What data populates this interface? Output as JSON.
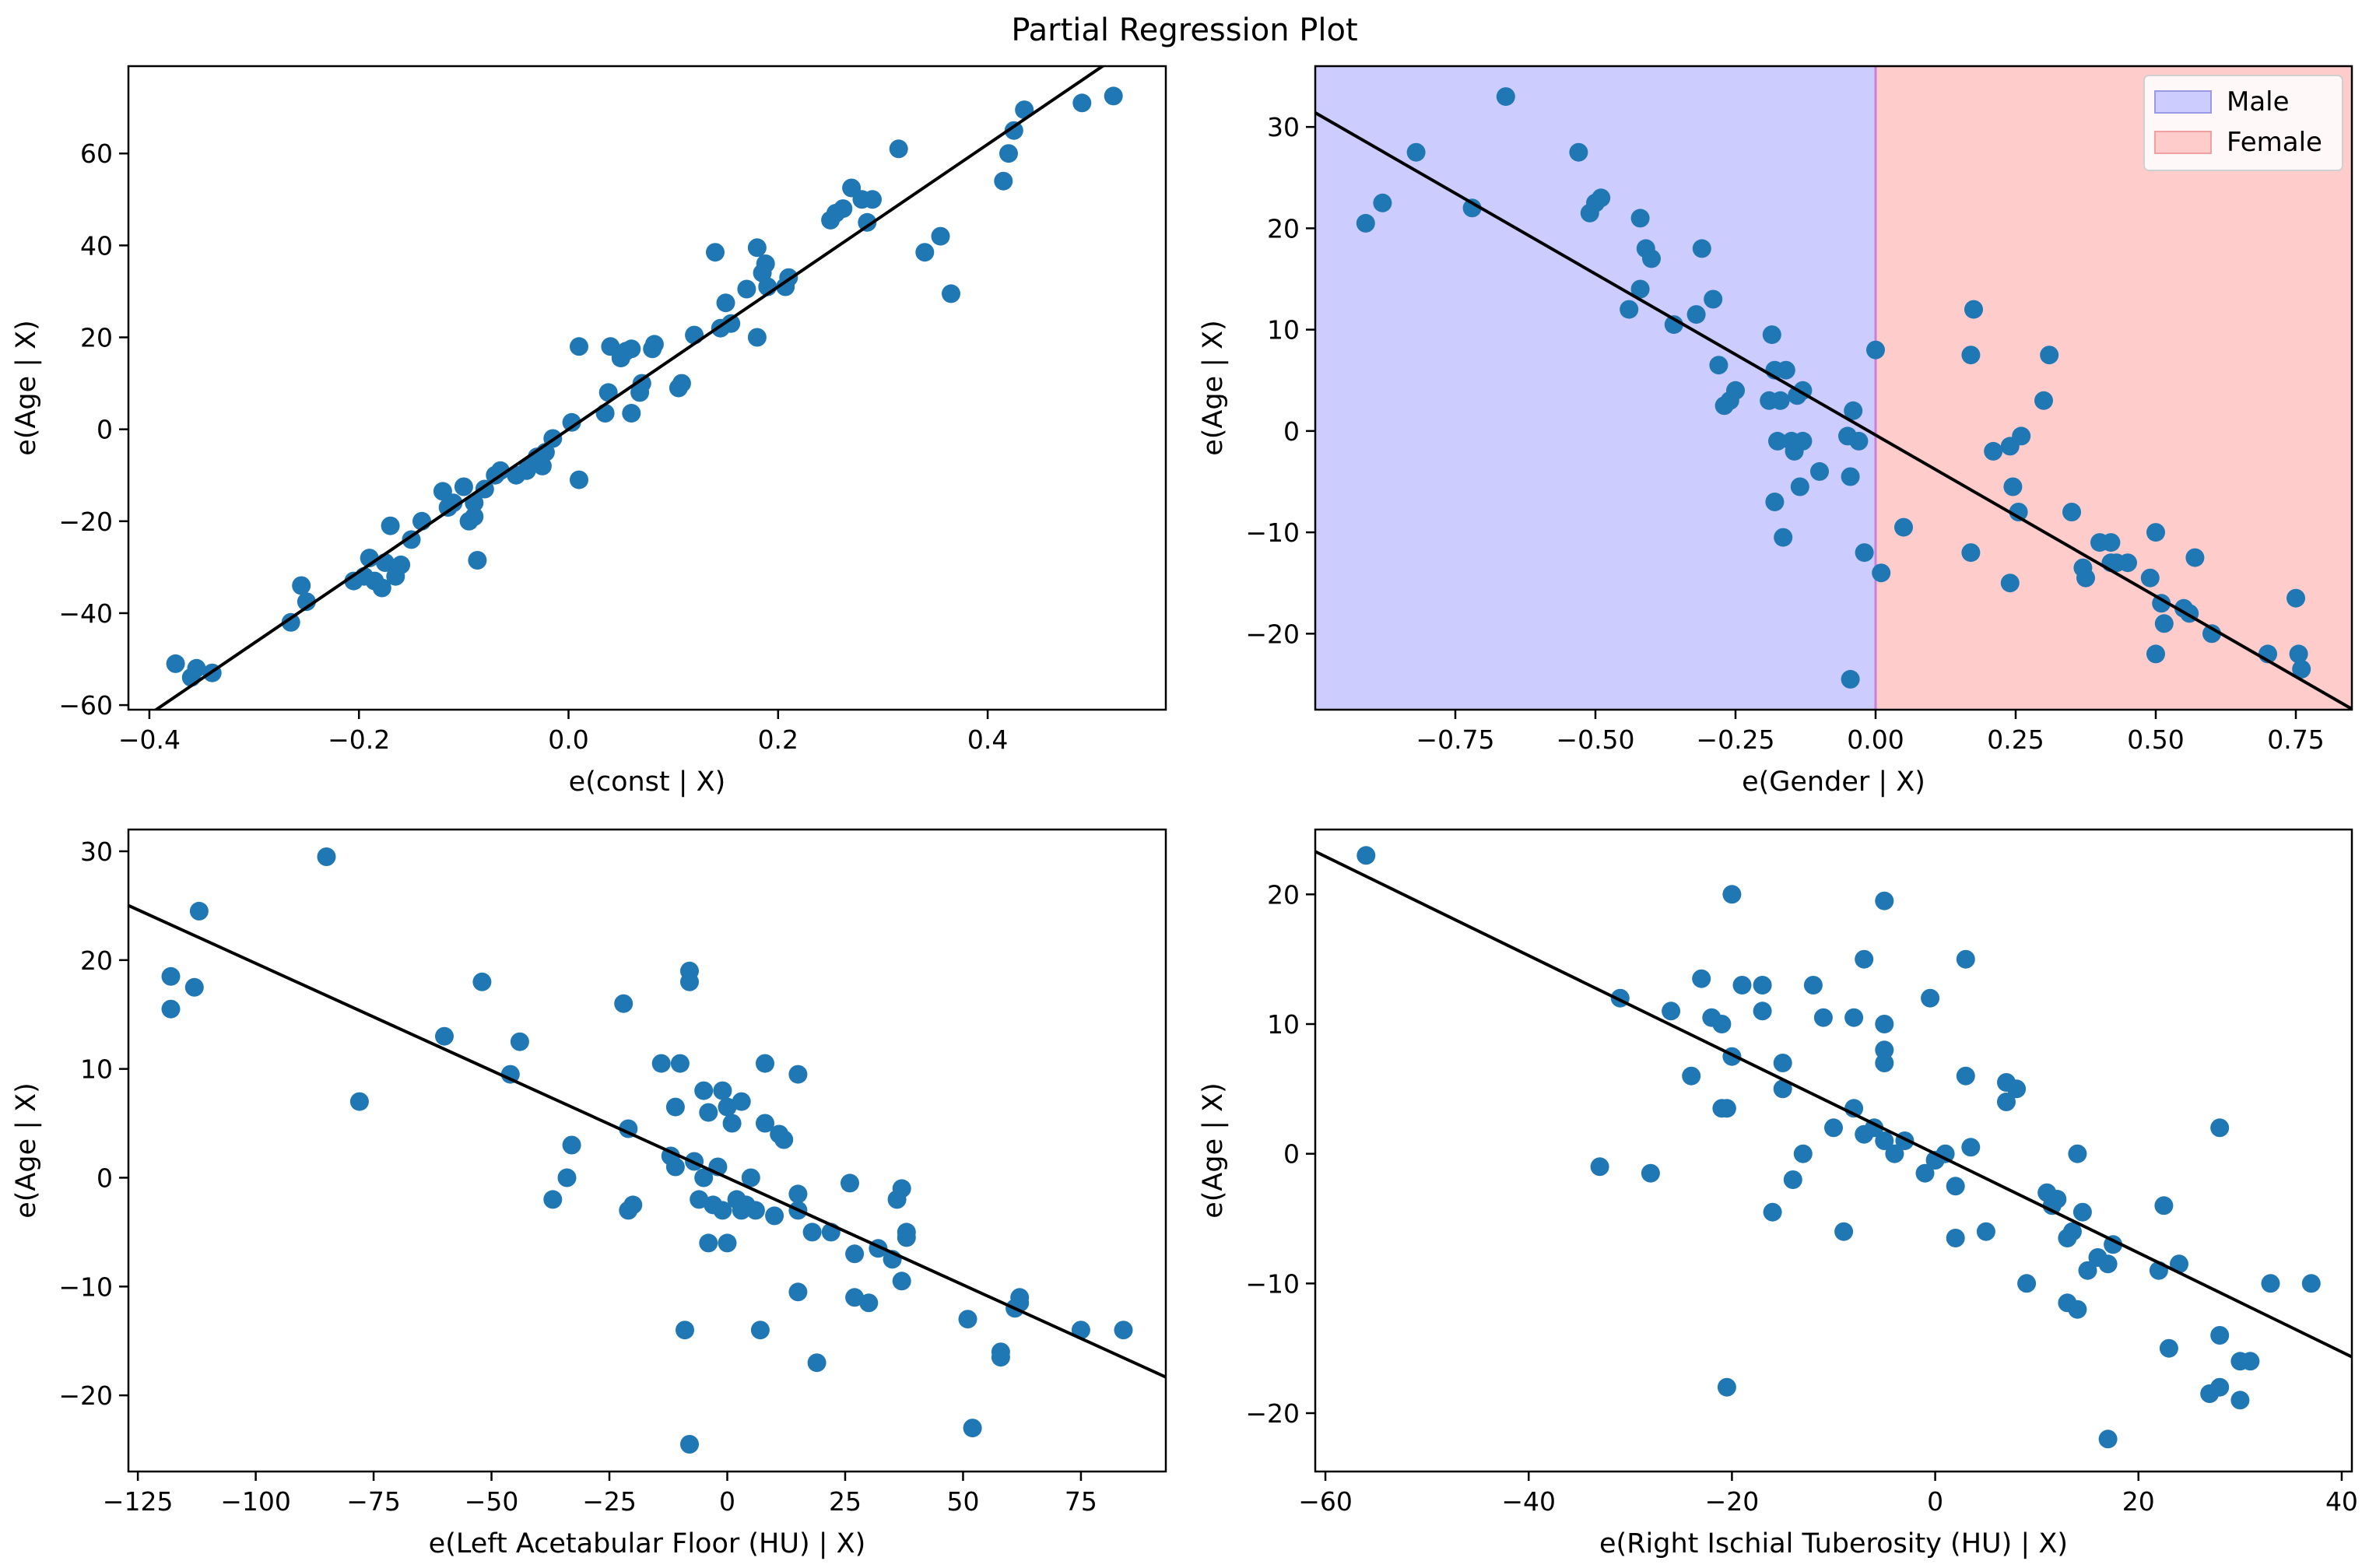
{
  "figure_title": "Partial Regression Plot",
  "colors": {
    "points": "#1f77b4",
    "line": "#000000",
    "male_fill": "#ccccff",
    "female_fill": "#ffcccc",
    "male_edge": "#9999e6",
    "female_edge": "#f0a0a0",
    "divider": "#c97fd8"
  },
  "chart_data": [
    {
      "type": "scatter",
      "xlabel": "e(const | X)",
      "ylabel": "e(Age | X)",
      "xlim": [
        -0.42,
        0.57
      ],
      "ylim": [
        -61,
        79
      ],
      "xticks": [
        -0.4,
        -0.2,
        0.0,
        0.2,
        0.4
      ],
      "xtick_labels": [
        "−0.4",
        "−0.2",
        "0.0",
        "0.2",
        "0.4"
      ],
      "yticks": [
        -60,
        -40,
        -20,
        0,
        20,
        40,
        60
      ],
      "ytick_labels": [
        "−60",
        "−40",
        "−20",
        "0",
        "20",
        "40",
        "60"
      ],
      "fit_line": {
        "slope": 155,
        "intercept": 0
      },
      "points": [
        [
          -0.375,
          -51
        ],
        [
          -0.36,
          -54
        ],
        [
          -0.355,
          -52
        ],
        [
          -0.34,
          -53
        ],
        [
          -0.265,
          -42
        ],
        [
          -0.255,
          -34
        ],
        [
          -0.25,
          -37.5
        ],
        [
          -0.205,
          -33
        ],
        [
          -0.195,
          -32
        ],
        [
          -0.19,
          -28
        ],
        [
          -0.185,
          -33
        ],
        [
          -0.178,
          -34.5
        ],
        [
          -0.175,
          -29
        ],
        [
          -0.17,
          -21
        ],
        [
          -0.165,
          -32
        ],
        [
          -0.16,
          -29.5
        ],
        [
          -0.15,
          -24
        ],
        [
          -0.14,
          -20
        ],
        [
          -0.12,
          -13.5
        ],
        [
          -0.115,
          -17
        ],
        [
          -0.11,
          -16
        ],
        [
          -0.1,
          -12.5
        ],
        [
          -0.095,
          -20
        ],
        [
          -0.09,
          -19
        ],
        [
          -0.09,
          -16
        ],
        [
          -0.087,
          -28.5
        ],
        [
          -0.08,
          -13
        ],
        [
          -0.07,
          -10
        ],
        [
          -0.065,
          -9
        ],
        [
          -0.05,
          -10
        ],
        [
          -0.04,
          -9
        ],
        [
          -0.035,
          -7.5
        ],
        [
          -0.03,
          -6
        ],
        [
          -0.025,
          -8
        ],
        [
          -0.022,
          -5
        ],
        [
          -0.015,
          -2
        ],
        [
          0.003,
          1.5
        ],
        [
          0.01,
          -11
        ],
        [
          0.01,
          18
        ],
        [
          0.035,
          3.5
        ],
        [
          0.038,
          8
        ],
        [
          0.04,
          18
        ],
        [
          0.05,
          15.5
        ],
        [
          0.055,
          17
        ],
        [
          0.06,
          17.5
        ],
        [
          0.06,
          3.5
        ],
        [
          0.068,
          8
        ],
        [
          0.07,
          10
        ],
        [
          0.08,
          17.5
        ],
        [
          0.082,
          18.5
        ],
        [
          0.105,
          9
        ],
        [
          0.108,
          10
        ],
        [
          0.12,
          20.5
        ],
        [
          0.14,
          38.5
        ],
        [
          0.145,
          22
        ],
        [
          0.15,
          27.5
        ],
        [
          0.155,
          23
        ],
        [
          0.17,
          30.5
        ],
        [
          0.18,
          39.5
        ],
        [
          0.18,
          20
        ],
        [
          0.185,
          34
        ],
        [
          0.188,
          36
        ],
        [
          0.19,
          31
        ],
        [
          0.207,
          31
        ],
        [
          0.21,
          33
        ],
        [
          0.25,
          45.5
        ],
        [
          0.255,
          47
        ],
        [
          0.262,
          48
        ],
        [
          0.27,
          52.5
        ],
        [
          0.28,
          50
        ],
        [
          0.285,
          45
        ],
        [
          0.29,
          50
        ],
        [
          0.315,
          61
        ],
        [
          0.34,
          38.5
        ],
        [
          0.355,
          42
        ],
        [
          0.365,
          29.5
        ],
        [
          0.415,
          54
        ],
        [
          0.42,
          60
        ],
        [
          0.425,
          65
        ],
        [
          0.435,
          69.5
        ],
        [
          0.49,
          71
        ],
        [
          0.52,
          72.5
        ]
      ]
    },
    {
      "type": "scatter",
      "xlabel": "e(Gender | X)",
      "ylabel": "e(Age | X)",
      "xlim": [
        -1.0,
        0.85
      ],
      "ylim": [
        -27.5,
        36
      ],
      "xticks": [
        -0.75,
        -0.5,
        -0.25,
        0.0,
        0.25,
        0.5,
        0.75
      ],
      "xtick_labels": [
        "−0.75",
        "−0.50",
        "−0.25",
        "0.00",
        "0.25",
        "0.50",
        "0.75"
      ],
      "yticks": [
        -20,
        -10,
        0,
        10,
        20,
        30
      ],
      "ytick_labels": [
        "−20",
        "−10",
        "0",
        "10",
        "20",
        "30"
      ],
      "fit_line": {
        "slope": -31.8,
        "intercept": -0.4
      },
      "regions": [
        {
          "label": "Male",
          "from": -1.0,
          "to": 0.0
        },
        {
          "label": "Female",
          "from": 0.0,
          "to": 0.85
        }
      ],
      "legend": {
        "position": "top-right",
        "entries": [
          "Male",
          "Female"
        ]
      },
      "points": [
        [
          -0.91,
          20.5
        ],
        [
          -0.88,
          22.5
        ],
        [
          -0.82,
          27.5
        ],
        [
          -0.72,
          22
        ],
        [
          -0.66,
          33
        ],
        [
          -0.53,
          27.5
        ],
        [
          -0.51,
          21.5
        ],
        [
          -0.5,
          22.5
        ],
        [
          -0.49,
          23
        ],
        [
          -0.44,
          12
        ],
        [
          -0.42,
          14
        ],
        [
          -0.42,
          21
        ],
        [
          -0.41,
          18
        ],
        [
          -0.4,
          17
        ],
        [
          -0.36,
          10.5
        ],
        [
          -0.32,
          11.5
        ],
        [
          -0.31,
          18
        ],
        [
          -0.29,
          13
        ],
        [
          -0.28,
          6.5
        ],
        [
          -0.27,
          2.5
        ],
        [
          -0.26,
          3
        ],
        [
          -0.25,
          4
        ],
        [
          -0.19,
          3
        ],
        [
          -0.185,
          9.5
        ],
        [
          -0.18,
          6
        ],
        [
          -0.18,
          -7
        ],
        [
          -0.175,
          -1
        ],
        [
          -0.17,
          3
        ],
        [
          -0.16,
          6
        ],
        [
          -0.165,
          -10.5
        ],
        [
          -0.15,
          -1
        ],
        [
          -0.145,
          -2
        ],
        [
          -0.14,
          3.5
        ],
        [
          -0.135,
          -5.5
        ],
        [
          -0.13,
          4
        ],
        [
          -0.13,
          -1
        ],
        [
          -0.1,
          -4
        ],
        [
          -0.05,
          -0.5
        ],
        [
          -0.045,
          -4.5
        ],
        [
          -0.04,
          2
        ],
        [
          -0.045,
          -24.5
        ],
        [
          -0.03,
          -1
        ],
        [
          -0.02,
          -12
        ],
        [
          0.0,
          8
        ],
        [
          0.01,
          -14
        ],
        [
          0.05,
          -9.5
        ],
        [
          0.17,
          7.5
        ],
        [
          0.175,
          12
        ],
        [
          0.17,
          -12
        ],
        [
          0.21,
          -2
        ],
        [
          0.24,
          -15
        ],
        [
          0.24,
          -1.5
        ],
        [
          0.245,
          -5.5
        ],
        [
          0.255,
          -8
        ],
        [
          0.26,
          -0.5
        ],
        [
          0.3,
          3
        ],
        [
          0.31,
          7.5
        ],
        [
          0.35,
          -8
        ],
        [
          0.37,
          -13.5
        ],
        [
          0.375,
          -14.5
        ],
        [
          0.4,
          -11
        ],
        [
          0.42,
          -11
        ],
        [
          0.42,
          -13
        ],
        [
          0.43,
          -13
        ],
        [
          0.45,
          -13
        ],
        [
          0.49,
          -14.5
        ],
        [
          0.5,
          -10
        ],
        [
          0.5,
          -22
        ],
        [
          0.51,
          -17
        ],
        [
          0.515,
          -19
        ],
        [
          0.55,
          -17.5
        ],
        [
          0.56,
          -18
        ],
        [
          0.57,
          -12.5
        ],
        [
          0.6,
          -20
        ],
        [
          0.7,
          -22
        ],
        [
          0.75,
          -16.5
        ],
        [
          0.755,
          -22
        ],
        [
          0.76,
          -23.5
        ]
      ]
    },
    {
      "type": "scatter",
      "xlabel": "e(Left Acetabular Floor (HU) | X)",
      "ylabel": "e(Age | X)",
      "xlim": [
        -127,
        93
      ],
      "ylim": [
        -27,
        32
      ],
      "xticks": [
        -125,
        -100,
        -75,
        -50,
        -25,
        0,
        25,
        50,
        75
      ],
      "xtick_labels": [
        "−125",
        "−100",
        "−75",
        "−50",
        "−25",
        "0",
        "25",
        "50",
        "75"
      ],
      "yticks": [
        -20,
        -10,
        0,
        10,
        20,
        30
      ],
      "ytick_labels": [
        "−20",
        "−10",
        "0",
        "10",
        "20",
        "30"
      ],
      "fit_line": {
        "slope": -0.197,
        "intercept": 0
      },
      "points": [
        [
          -118,
          18.5
        ],
        [
          -118,
          15.5
        ],
        [
          -113,
          17.5
        ],
        [
          -112,
          24.5
        ],
        [
          -85,
          29.5
        ],
        [
          -78,
          7
        ],
        [
          -60,
          13
        ],
        [
          -52,
          18
        ],
        [
          -46,
          9.5
        ],
        [
          -44,
          12.5
        ],
        [
          -37,
          -2
        ],
        [
          -34,
          0
        ],
        [
          -33,
          3
        ],
        [
          -22,
          16
        ],
        [
          -21,
          4.5
        ],
        [
          -21,
          -3
        ],
        [
          -20,
          -2.5
        ],
        [
          -14,
          10.5
        ],
        [
          -12,
          2
        ],
        [
          -11,
          1
        ],
        [
          -11,
          6.5
        ],
        [
          -10,
          10.5
        ],
        [
          -9,
          -14
        ],
        [
          -8,
          19
        ],
        [
          -8,
          18
        ],
        [
          -8,
          -24.5
        ],
        [
          -7,
          1.5
        ],
        [
          -6,
          -2
        ],
        [
          -5,
          0
        ],
        [
          -5,
          8
        ],
        [
          -4,
          6
        ],
        [
          -4,
          -6
        ],
        [
          -3,
          -2.5
        ],
        [
          -2,
          1
        ],
        [
          -1,
          8
        ],
        [
          -1,
          -3
        ],
        [
          0,
          6.5
        ],
        [
          0,
          -6
        ],
        [
          1,
          5
        ],
        [
          2,
          -2
        ],
        [
          3,
          -3
        ],
        [
          3,
          7
        ],
        [
          4,
          -2.5
        ],
        [
          5,
          0
        ],
        [
          6,
          -3
        ],
        [
          7,
          -14
        ],
        [
          8,
          10.5
        ],
        [
          8,
          5
        ],
        [
          10,
          -3.5
        ],
        [
          11,
          4
        ],
        [
          12,
          3.5
        ],
        [
          15,
          9.5
        ],
        [
          15,
          -1.5
        ],
        [
          15,
          -3
        ],
        [
          15,
          -10.5
        ],
        [
          18,
          -5
        ],
        [
          19,
          -17
        ],
        [
          22,
          -5
        ],
        [
          26,
          -0.5
        ],
        [
          27,
          -7
        ],
        [
          27,
          -11
        ],
        [
          30,
          -11.5
        ],
        [
          32,
          -6.5
        ],
        [
          35,
          -7.5
        ],
        [
          36,
          -2
        ],
        [
          37,
          -1
        ],
        [
          37,
          -9.5
        ],
        [
          38,
          -5
        ],
        [
          38,
          -5.5
        ],
        [
          51,
          -13
        ],
        [
          52,
          -23
        ],
        [
          58,
          -16
        ],
        [
          58,
          -16.5
        ],
        [
          61,
          -12
        ],
        [
          62,
          -11
        ],
        [
          62,
          -11.5
        ],
        [
          75,
          -14
        ],
        [
          84,
          -14
        ]
      ]
    },
    {
      "type": "scatter",
      "xlabel": "e(Right Ischial Tuberosity (HU)  | X)",
      "ylabel": "e(Age | X)",
      "xlim": [
        -61,
        41
      ],
      "ylim": [
        -24.5,
        25
      ],
      "xticks": [
        -60,
        -40,
        -20,
        0,
        20,
        40
      ],
      "xtick_labels": [
        "−60",
        "−40",
        "−20",
        "0",
        "20",
        "40"
      ],
      "yticks": [
        -20,
        -10,
        0,
        10,
        20
      ],
      "ytick_labels": [
        "−20",
        "−10",
        "0",
        "10",
        "20"
      ],
      "fit_line": {
        "slope": -0.382,
        "intercept": 0
      },
      "points": [
        [
          -56,
          23
        ],
        [
          -33,
          -1
        ],
        [
          -31,
          12
        ],
        [
          -28,
          -1.5
        ],
        [
          -26,
          11
        ],
        [
          -24,
          6
        ],
        [
          -23,
          13.5
        ],
        [
          -22,
          10.5
        ],
        [
          -21,
          3.5
        ],
        [
          -21,
          10
        ],
        [
          -20.5,
          -18
        ],
        [
          -20.5,
          3.5
        ],
        [
          -20,
          7.5
        ],
        [
          -20,
          20
        ],
        [
          -19,
          13
        ],
        [
          -17,
          13
        ],
        [
          -17,
          11
        ],
        [
          -16,
          -4.5
        ],
        [
          -15,
          7
        ],
        [
          -15,
          5
        ],
        [
          -14,
          -2
        ],
        [
          -13,
          0
        ],
        [
          -12,
          13
        ],
        [
          -11,
          10.5
        ],
        [
          -10,
          2
        ],
        [
          -9,
          -6
        ],
        [
          -8,
          10.5
        ],
        [
          -8,
          3.5
        ],
        [
          -7,
          15
        ],
        [
          -7,
          1.5
        ],
        [
          -6,
          2
        ],
        [
          -5,
          19.5
        ],
        [
          -5,
          10
        ],
        [
          -5,
          8
        ],
        [
          -5,
          7
        ],
        [
          -5,
          1
        ],
        [
          -4,
          0
        ],
        [
          -3,
          1
        ],
        [
          -1,
          -1.5
        ],
        [
          -0.5,
          12
        ],
        [
          0,
          -0.5
        ],
        [
          1,
          0
        ],
        [
          2,
          -2.5
        ],
        [
          2,
          -6.5
        ],
        [
          3,
          15
        ],
        [
          3,
          6
        ],
        [
          3.5,
          0.5
        ],
        [
          5,
          -6
        ],
        [
          7,
          4
        ],
        [
          7,
          5.5
        ],
        [
          8,
          5
        ],
        [
          9,
          -10
        ],
        [
          11,
          -3
        ],
        [
          11.5,
          -4
        ],
        [
          12,
          -3.5
        ],
        [
          13,
          -6.5
        ],
        [
          13,
          -11.5
        ],
        [
          13.5,
          -6
        ],
        [
          14,
          0
        ],
        [
          14,
          -12
        ],
        [
          14.5,
          -4.5
        ],
        [
          15,
          -9
        ],
        [
          16,
          -8
        ],
        [
          17,
          -22
        ],
        [
          17,
          -8.5
        ],
        [
          17.5,
          -7
        ],
        [
          22,
          -9
        ],
        [
          22.5,
          -4
        ],
        [
          23,
          -15
        ],
        [
          24,
          -8.5
        ],
        [
          27,
          -18.5
        ],
        [
          28,
          -18
        ],
        [
          28,
          -14
        ],
        [
          28,
          2
        ],
        [
          30,
          -16
        ],
        [
          30,
          -19
        ],
        [
          31,
          -16
        ],
        [
          33,
          -10
        ],
        [
          37,
          -10
        ]
      ]
    }
  ]
}
